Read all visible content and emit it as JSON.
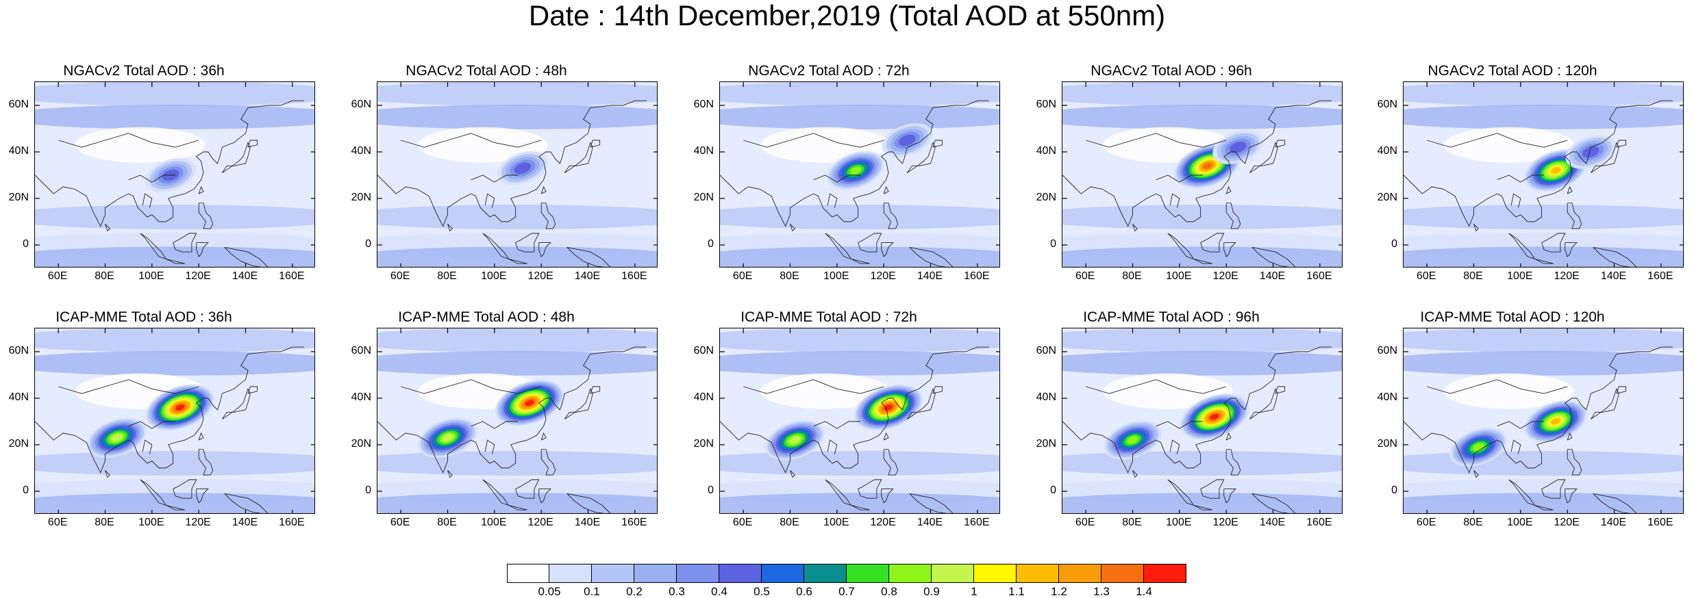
{
  "title": "Date : 14th December,2019 (Total AOD at 550nm)",
  "axes": {
    "x_ticks": [
      "60E",
      "80E",
      "100E",
      "120E",
      "140E",
      "160E"
    ],
    "x_tick_values": [
      60,
      80,
      100,
      120,
      140,
      160
    ],
    "x_range": [
      50,
      170
    ],
    "y_ticks": [
      "60N",
      "40N",
      "20N",
      "0"
    ],
    "y_tick_values": [
      60,
      40,
      20,
      0
    ],
    "y_range": [
      -10,
      70
    ]
  },
  "panels": [
    {
      "title": "NGACv2 Total AOD : 36h",
      "model": "NGACv2",
      "lead_hours": 36,
      "features": [
        {
          "lon": 108,
          "lat": 30,
          "level": 0.4
        }
      ]
    },
    {
      "title": "NGACv2 Total AOD : 48h",
      "model": "NGACv2",
      "lead_hours": 48,
      "features": [
        {
          "lon": 112,
          "lat": 33,
          "level": 0.4
        }
      ]
    },
    {
      "title": "NGACv2 Total AOD : 72h",
      "model": "NGACv2",
      "lead_hours": 72,
      "features": [
        {
          "lon": 108,
          "lat": 32,
          "level": 0.8
        },
        {
          "lon": 130,
          "lat": 45,
          "level": 0.4
        }
      ]
    },
    {
      "title": "NGACv2 Total AOD : 96h",
      "model": "NGACv2",
      "lead_hours": 96,
      "features": [
        {
          "lon": 112,
          "lat": 34,
          "level": 1.3
        },
        {
          "lon": 125,
          "lat": 42,
          "level": 0.4
        }
      ]
    },
    {
      "title": "NGACv2 Total AOD : 120h",
      "model": "NGACv2",
      "lead_hours": 120,
      "features": [
        {
          "lon": 115,
          "lat": 32,
          "level": 1.1
        },
        {
          "lon": 130,
          "lat": 40,
          "level": 0.4
        }
      ]
    },
    {
      "title": "ICAP-MME Total AOD : 36h",
      "model": "ICAP-MME",
      "lead_hours": 36,
      "features": [
        {
          "lon": 112,
          "lat": 36,
          "level": 1.4
        },
        {
          "lon": 85,
          "lat": 23,
          "level": 0.9
        }
      ]
    },
    {
      "title": "ICAP-MME Total AOD : 48h",
      "model": "ICAP-MME",
      "lead_hours": 48,
      "features": [
        {
          "lon": 115,
          "lat": 38,
          "level": 1.4
        },
        {
          "lon": 80,
          "lat": 23,
          "level": 0.9
        }
      ]
    },
    {
      "title": "ICAP-MME Total AOD : 72h",
      "model": "ICAP-MME",
      "lead_hours": 72,
      "features": [
        {
          "lon": 122,
          "lat": 36,
          "level": 1.4
        },
        {
          "lon": 82,
          "lat": 22,
          "level": 0.9
        }
      ]
    },
    {
      "title": "ICAP-MME Total AOD : 96h",
      "model": "ICAP-MME",
      "lead_hours": 96,
      "features": [
        {
          "lon": 115,
          "lat": 32,
          "level": 1.4
        },
        {
          "lon": 80,
          "lat": 22,
          "level": 0.8
        }
      ]
    },
    {
      "title": "ICAP-MME Total AOD : 120h",
      "model": "ICAP-MME",
      "lead_hours": 120,
      "features": [
        {
          "lon": 115,
          "lat": 30,
          "level": 1.1
        },
        {
          "lon": 82,
          "lat": 19,
          "level": 0.8
        }
      ]
    }
  ],
  "colorbar": {
    "labels": [
      "0.05",
      "0.1",
      "0.2",
      "0.3",
      "0.4",
      "0.5",
      "0.6",
      "0.7",
      "0.8",
      "0.9",
      "1",
      "1.1",
      "1.2",
      "1.3",
      "1.4"
    ],
    "colors": [
      "#ffffff",
      "#d7e1fb",
      "#b4c6f7",
      "#9ab0f1",
      "#7d91ec",
      "#5d63e0",
      "#1d67e0",
      "#0b8e8e",
      "#36e023",
      "#8ff519",
      "#c3f54c",
      "#fff600",
      "#fbbc03",
      "#f79d09",
      "#f86f0f",
      "#fe1c0c"
    ]
  }
}
